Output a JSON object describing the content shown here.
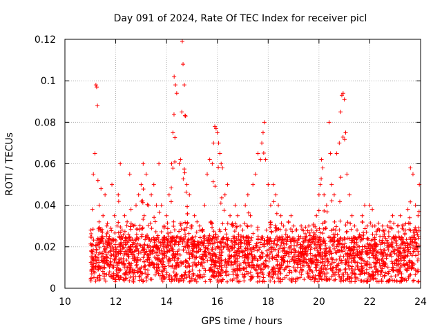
{
  "chart_data": {
    "type": "scatter",
    "title": "Day 091 of 2024, Rate Of TEC Index for receiver picl",
    "xlabel": "GPS time / hours",
    "ylabel": "ROTI / TECUs",
    "xlim": [
      10,
      24
    ],
    "ylim": [
      0,
      0.12
    ],
    "x_ticks": [
      10,
      12,
      14,
      16,
      18,
      20,
      22,
      24
    ],
    "x_tick_labels": [
      "10",
      "12",
      "14",
      "16",
      "18",
      "20",
      "22",
      "24"
    ],
    "y_ticks": [
      0,
      0.02,
      0.04,
      0.06,
      0.08,
      0.1,
      0.12
    ],
    "y_tick_labels": [
      "0",
      "0.02",
      "0.04",
      "0.06",
      "0.08",
      "0.1",
      "0.12"
    ],
    "grid": true,
    "marker": "+",
    "series": [
      {
        "name": "ROTI",
        "color": "#ff0000",
        "x": [
          11.02,
          11.08,
          11.12,
          11.18,
          11.22,
          11.25,
          11.28,
          11.3,
          11.35,
          11.42,
          11.5,
          11.58,
          11.65,
          11.75,
          11.85,
          11.95,
          12.05,
          12.1,
          12.18,
          12.25,
          12.35,
          12.45,
          12.55,
          12.6,
          12.7,
          12.8,
          12.9,
          13.0,
          13.08,
          13.12,
          13.2,
          13.3,
          13.4,
          13.5,
          13.6,
          13.7,
          13.8,
          13.9,
          14.0,
          14.1,
          14.2,
          14.25,
          14.3,
          14.35,
          14.4,
          14.5,
          14.55,
          14.6,
          14.62,
          14.65,
          14.7,
          14.75,
          14.8,
          14.9,
          15.0,
          15.1,
          15.2,
          15.3,
          15.4,
          15.5,
          15.6,
          15.7,
          15.8,
          15.85,
          15.9,
          15.95,
          16.0,
          16.05,
          16.1,
          16.15,
          16.2,
          16.3,
          16.4,
          16.5,
          16.6,
          16.7,
          16.8,
          16.9,
          17.0,
          17.1,
          17.2,
          17.3,
          17.4,
          17.5,
          17.6,
          17.7,
          17.75,
          17.8,
          17.85,
          17.9,
          18.0,
          18.1,
          18.2,
          18.3,
          18.4,
          18.5,
          18.6,
          18.7,
          18.8,
          18.9,
          19.0,
          19.1,
          19.2,
          19.3,
          19.4,
          19.5,
          19.6,
          19.7,
          19.8,
          19.9,
          20.0,
          20.05,
          20.1,
          20.15,
          20.2,
          20.3,
          20.4,
          20.45,
          20.5,
          20.6,
          20.7,
          20.8,
          20.85,
          20.9,
          20.95,
          21.0,
          21.05,
          21.1,
          21.2,
          21.3,
          21.4,
          21.5,
          21.6,
          21.7,
          21.8,
          21.9,
          22.0,
          22.1,
          22.2,
          22.3,
          22.4,
          22.5,
          22.6,
          22.7,
          22.8,
          22.9,
          23.0,
          23.1,
          23.2,
          23.3,
          23.4,
          23.5,
          23.6,
          23.7,
          23.8,
          23.9,
          23.95
        ],
        "y": [
          0.028,
          0.038,
          0.055,
          0.065,
          0.098,
          0.097,
          0.088,
          0.052,
          0.04,
          0.048,
          0.035,
          0.045,
          0.03,
          0.025,
          0.05,
          0.035,
          0.03,
          0.045,
          0.06,
          0.028,
          0.035,
          0.032,
          0.055,
          0.038,
          0.03,
          0.04,
          0.045,
          0.05,
          0.06,
          0.035,
          0.055,
          0.04,
          0.045,
          0.05,
          0.04,
          0.06,
          0.04,
          0.03,
          0.035,
          0.045,
          0.06,
          0.075,
          0.102,
          0.098,
          0.094,
          0.06,
          0.062,
          0.085,
          0.119,
          0.108,
          0.098,
          0.083,
          0.05,
          0.045,
          0.03,
          0.035,
          0.032,
          0.03,
          0.028,
          0.04,
          0.055,
          0.062,
          0.06,
          0.07,
          0.078,
          0.077,
          0.075,
          0.07,
          0.065,
          0.06,
          0.058,
          0.045,
          0.05,
          0.035,
          0.03,
          0.04,
          0.035,
          0.03,
          0.028,
          0.04,
          0.045,
          0.035,
          0.05,
          0.055,
          0.065,
          0.062,
          0.07,
          0.075,
          0.08,
          0.062,
          0.05,
          0.04,
          0.05,
          0.045,
          0.04,
          0.035,
          0.03,
          0.028,
          0.032,
          0.035,
          0.03,
          0.028,
          0.025,
          0.03,
          0.022,
          0.025,
          0.03,
          0.028,
          0.025,
          0.035,
          0.045,
          0.05,
          0.062,
          0.058,
          0.045,
          0.04,
          0.08,
          0.065,
          0.05,
          0.045,
          0.065,
          0.07,
          0.085,
          0.093,
          0.094,
          0.091,
          0.075,
          0.055,
          0.045,
          0.035,
          0.03,
          0.028,
          0.025,
          0.035,
          0.04,
          0.03,
          0.04,
          0.038,
          0.03,
          0.028,
          0.025,
          0.03,
          0.028,
          0.03,
          0.032,
          0.035,
          0.025,
          0.03,
          0.035,
          0.03,
          0.028,
          0.038,
          0.058,
          0.055,
          0.04,
          0.035,
          0.05
        ]
      }
    ],
    "note": "Dense background scatter of ROTI points between ~0.002 and ~0.03 TECU/s across 11-24 h; listed points are the representative upper envelope and spikes."
  }
}
